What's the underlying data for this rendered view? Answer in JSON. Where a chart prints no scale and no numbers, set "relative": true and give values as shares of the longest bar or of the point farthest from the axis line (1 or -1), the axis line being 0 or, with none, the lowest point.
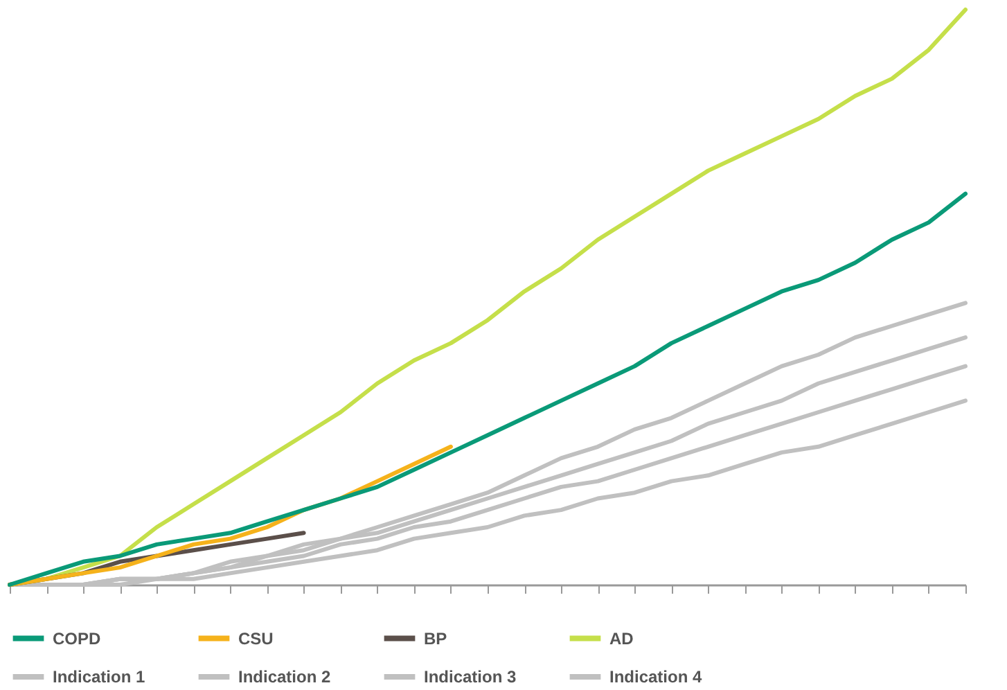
{
  "chart_data": {
    "type": "line",
    "relative": true,
    "grid": false,
    "legend": "bottom",
    "categories": [
      null,
      null,
      null,
      null,
      null,
      null,
      null,
      null,
      null,
      null,
      null,
      null,
      null,
      null,
      null,
      null,
      null,
      null,
      null,
      null,
      null,
      null,
      null,
      null,
      null,
      null,
      null
    ],
    "series": [
      {
        "name": "COPD",
        "color": "#0a9a78",
        "values": [
          0,
          0.02,
          0.04,
          0.05,
          0.07,
          0.08,
          0.09,
          0.11,
          0.13,
          0.15,
          0.17,
          0.2,
          0.23,
          0.26,
          0.29,
          0.32,
          0.35,
          0.38,
          0.42,
          0.45,
          0.48,
          0.51,
          0.53,
          0.56,
          0.6,
          0.63,
          0.68
        ]
      },
      {
        "name": "CSU",
        "color": "#f5b21b",
        "values": [
          0,
          0.01,
          0.02,
          0.03,
          0.05,
          0.07,
          0.08,
          0.1,
          0.13,
          0.15,
          0.18,
          0.21,
          0.24,
          null,
          null,
          null,
          null,
          null,
          null,
          null,
          null,
          null,
          null,
          null,
          null,
          null,
          null
        ]
      },
      {
        "name": "BP",
        "color": "#5b4f4a",
        "values": [
          0,
          0.01,
          0.02,
          0.04,
          0.05,
          0.06,
          0.07,
          0.08,
          0.09,
          null,
          null,
          null,
          null,
          null,
          null,
          null,
          null,
          null,
          null,
          null,
          null,
          null,
          null,
          null,
          null,
          null,
          null
        ]
      },
      {
        "name": "AD",
        "color": "#c5df4a",
        "values": [
          0,
          0.01,
          0.03,
          0.05,
          0.1,
          0.14,
          0.18,
          0.22,
          0.26,
          0.3,
          0.35,
          0.39,
          0.42,
          0.46,
          0.51,
          0.55,
          0.6,
          0.64,
          0.68,
          0.72,
          0.75,
          0.78,
          0.81,
          0.85,
          0.88,
          0.93,
          1
        ]
      },
      {
        "name": "Indication 1",
        "color": "#c0c0c0",
        "values": [
          0,
          0,
          0,
          0.01,
          0.01,
          0.02,
          0.04,
          0.05,
          0.07,
          0.08,
          0.1,
          0.12,
          0.14,
          0.16,
          0.19,
          0.22,
          0.24,
          0.27,
          0.29,
          0.32,
          0.35,
          0.38,
          0.4,
          0.43,
          0.45,
          0.47,
          0.49
        ]
      },
      {
        "name": "Indication 2",
        "color": "#c0c0c0",
        "values": [
          0,
          0,
          0,
          0.01,
          0.01,
          0.02,
          0.03,
          0.05,
          0.06,
          0.08,
          0.09,
          0.11,
          0.13,
          0.15,
          0.17,
          0.19,
          0.21,
          0.23,
          0.25,
          0.28,
          0.3,
          0.32,
          0.35,
          0.37,
          0.39,
          0.41,
          0.43
        ]
      },
      {
        "name": "Indication 3",
        "color": "#c0c0c0",
        "values": [
          0,
          0,
          0,
          0.01,
          0.01,
          0.02,
          0.03,
          0.04,
          0.05,
          0.07,
          0.08,
          0.1,
          0.11,
          0.13,
          0.15,
          0.17,
          0.18,
          0.2,
          0.22,
          0.24,
          0.26,
          0.28,
          0.3,
          0.32,
          0.34,
          0.36,
          0.38
        ]
      },
      {
        "name": "Indication 4",
        "color": "#c0c0c0",
        "values": [
          0,
          0,
          0,
          0,
          0.01,
          0.01,
          0.02,
          0.03,
          0.04,
          0.05,
          0.06,
          0.08,
          0.09,
          0.1,
          0.12,
          0.13,
          0.15,
          0.16,
          0.18,
          0.19,
          0.21,
          0.23,
          0.24,
          0.26,
          0.28,
          0.3,
          0.32
        ]
      }
    ]
  }
}
